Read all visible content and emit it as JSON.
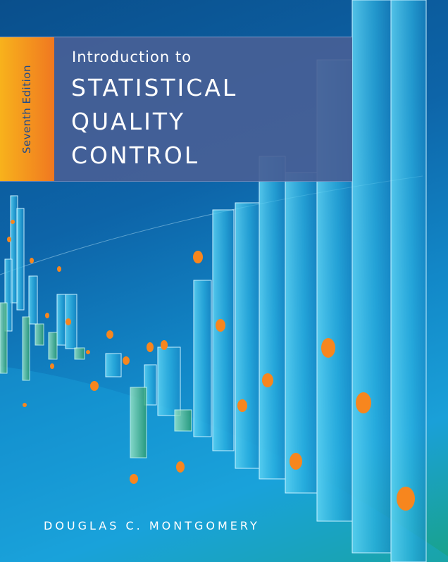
{
  "cover": {
    "edition": "Seventh Edition",
    "title_prefix": "Introduction to",
    "title_lines": [
      "STATISTICAL",
      "QUALITY",
      "CONTROL"
    ],
    "author": "DOUGLAS C. MONTGOMERY"
  },
  "colors": {
    "background": "#0d64a8",
    "title_panel": "#48609a",
    "edition_strip": "#f39a1e",
    "dots": "#f7861e",
    "bars": "#3fc6ee"
  }
}
